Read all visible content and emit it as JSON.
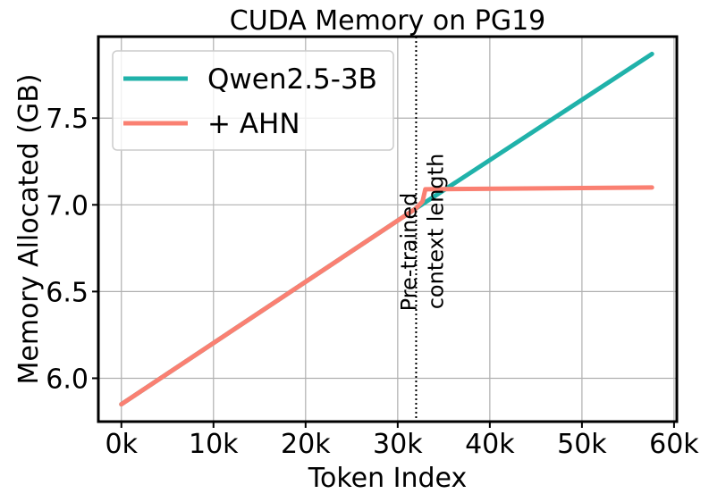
{
  "chart_data": {
    "type": "line",
    "title": "CUDA Memory on PG19",
    "xlabel": "Token Index",
    "ylabel": "Memory Allocated (GB)",
    "xlim": [
      -2500,
      60300
    ],
    "ylim": [
      5.75,
      7.97
    ],
    "xticks": [
      {
        "value": 0,
        "label": "0k"
      },
      {
        "value": 10000,
        "label": "10k"
      },
      {
        "value": 20000,
        "label": "20k"
      },
      {
        "value": 30000,
        "label": "30k"
      },
      {
        "value": 40000,
        "label": "40k"
      },
      {
        "value": 50000,
        "label": "50k"
      },
      {
        "value": 60000,
        "label": "60k"
      }
    ],
    "yticks": [
      {
        "value": 6.0,
        "label": "6.0"
      },
      {
        "value": 6.5,
        "label": "6.5"
      },
      {
        "value": 7.0,
        "label": "7.0"
      },
      {
        "value": 7.5,
        "label": "7.5"
      }
    ],
    "grid": true,
    "legend_position": "top-left",
    "series": [
      {
        "name": "Qwen2.5-3B",
        "color": "#20b2aa",
        "x": [
          0,
          32000,
          57600
        ],
        "y": [
          5.85,
          6.98,
          7.87
        ]
      },
      {
        "name": "+ AHN",
        "color": "#fa8072",
        "x": [
          0,
          32000,
          32700,
          33000,
          57600
        ],
        "y": [
          5.85,
          6.98,
          7.02,
          7.09,
          7.1
        ]
      }
    ],
    "annotation": {
      "x": 32000,
      "line_style": "dotted",
      "lines": [
        "Pre-trained",
        "context length"
      ]
    }
  }
}
